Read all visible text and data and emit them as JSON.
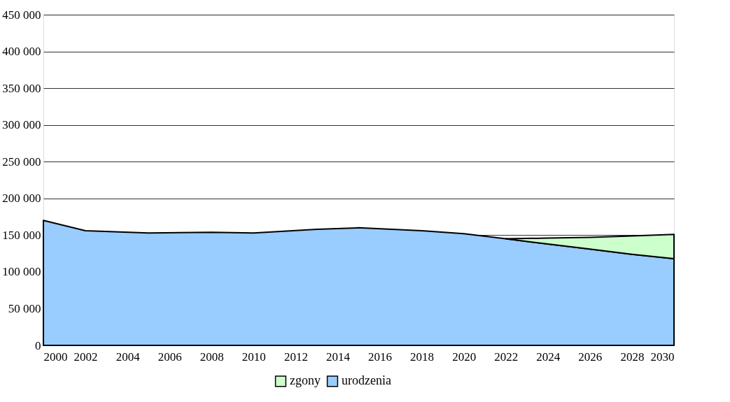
{
  "chart_data": {
    "type": "area",
    "xlim": [
      2000,
      2030
    ],
    "xticks": [
      2000,
      2002,
      2004,
      2006,
      2008,
      2010,
      2012,
      2014,
      2016,
      2018,
      2020,
      2022,
      2024,
      2026,
      2028,
      2030
    ],
    "ylim": [
      0,
      450000
    ],
    "yticks": [
      {
        "value": 0,
        "label": "0"
      },
      {
        "value": 50000,
        "label": "50 000"
      },
      {
        "value": 100000,
        "label": "100 000"
      },
      {
        "value": 150000,
        "label": "150 000"
      },
      {
        "value": 200000,
        "label": "200 000"
      },
      {
        "value": 250000,
        "label": "250 000"
      },
      {
        "value": 300000,
        "label": "300 000"
      },
      {
        "value": 350000,
        "label": "350 000"
      },
      {
        "value": 400000,
        "label": "400 000"
      },
      {
        "value": 450000,
        "label": "450 000"
      }
    ],
    "grid": "y",
    "legend": "bottom",
    "series": [
      {
        "name": "zgony",
        "color": "#ccffcc",
        "x": [
          2022,
          2024,
          2026,
          2028,
          2030
        ],
        "values": [
          145000,
          146000,
          147000,
          149000,
          151000
        ]
      },
      {
        "name": "urodzenia",
        "color": "#99ccff",
        "x": [
          2000,
          2002,
          2005,
          2008,
          2010,
          2013,
          2015,
          2018,
          2020,
          2022,
          2024,
          2026,
          2028,
          2030
        ],
        "values": [
          170000,
          156000,
          153000,
          154000,
          153000,
          158000,
          160000,
          156000,
          152000,
          145000,
          138000,
          131000,
          124000,
          118000
        ]
      }
    ]
  }
}
